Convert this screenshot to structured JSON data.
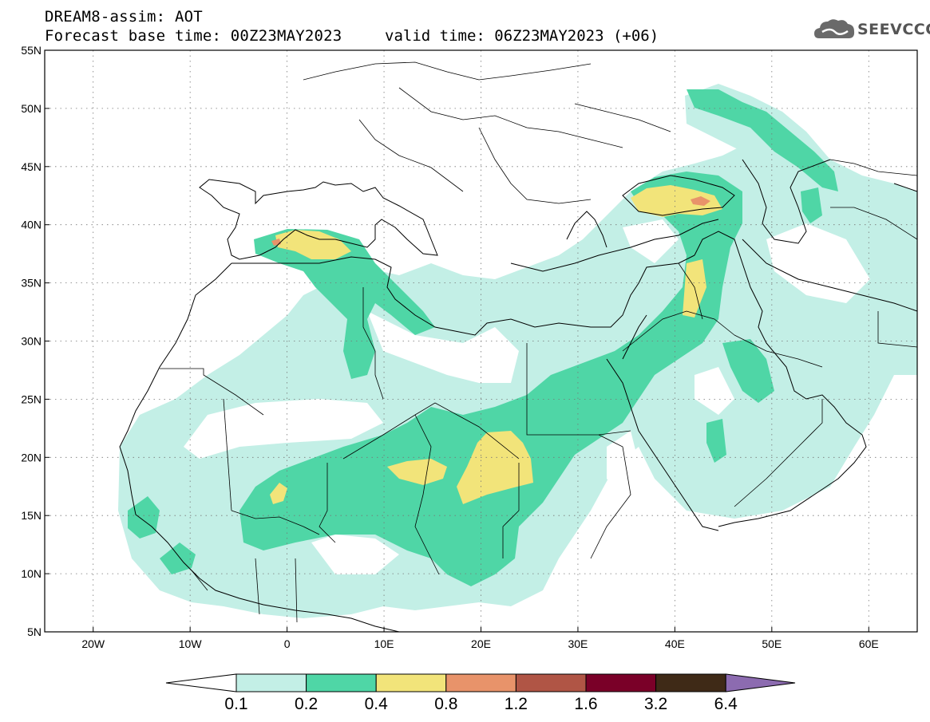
{
  "header": {
    "title_line1": "DREAM8-assim: AOT",
    "title_line2": "Forecast base time: 00Z23MAY2023",
    "valid_time": "valid time: 06Z23MAY2023 (+06)",
    "logo_text": "SEEVCCC"
  },
  "map": {
    "lon_range": [
      -25,
      65
    ],
    "lat_range": [
      5,
      55
    ],
    "lat_labels": [
      "55N",
      "50N",
      "45N",
      "40N",
      "35N",
      "30N",
      "25N",
      "20N",
      "15N",
      "10N",
      "5N"
    ],
    "lon_labels": [
      "20W",
      "10W",
      "0",
      "10E",
      "20E",
      "30E",
      "40E",
      "50E",
      "60E"
    ],
    "grid": "dotted",
    "field": "aerosol optical thickness"
  },
  "colorbar": {
    "labels": [
      "0.1",
      "0.2",
      "0.4",
      "0.8",
      "1.2",
      "1.6",
      "3.2",
      "6.4"
    ],
    "colors": [
      "#c3efe6",
      "#4fd6a6",
      "#f2e47a",
      "#e8936a",
      "#b05545",
      "#7a0028",
      "#3f2a17",
      "#8c6bb0"
    ],
    "extend_low_color": "#ffffff",
    "extend_high_color": "#8c6bb0"
  }
}
